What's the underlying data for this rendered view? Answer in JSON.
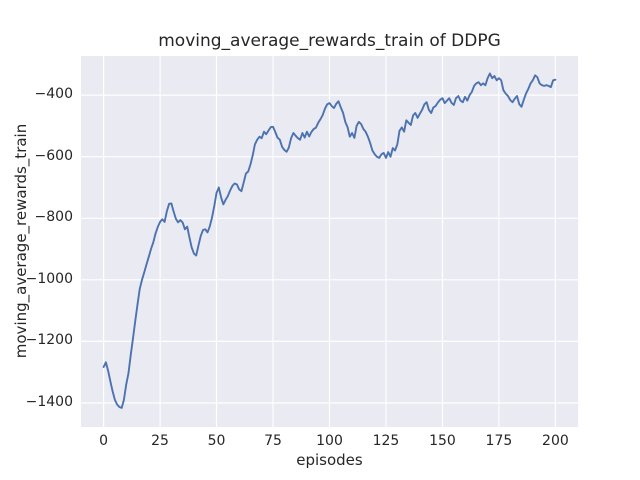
{
  "figure": {
    "background_color": "#ffffff",
    "text_color": "#262626"
  },
  "chart_data": {
    "type": "line",
    "title": "moving_average_rewards_train of DDPG",
    "xlabel": "episodes",
    "ylabel": "moving_average_rewards_train",
    "legend": false,
    "grid": true,
    "style": "seaborn-darkgrid",
    "plot_bg": "#eaeaf2",
    "grid_color": "#ffffff",
    "line_color": "#4c72b0",
    "xlim": [
      -10,
      210
    ],
    "ylim": [
      -1478,
      -273
    ],
    "x_ticks": [
      0,
      25,
      50,
      75,
      100,
      125,
      150,
      175,
      200
    ],
    "y_ticks": [
      -400,
      -600,
      -800,
      -1000,
      -1200,
      -1400
    ],
    "x": [
      0,
      1,
      2,
      3,
      4,
      5,
      6,
      7,
      8,
      9,
      10,
      11,
      12,
      13,
      14,
      15,
      16,
      17,
      18,
      19,
      20,
      21,
      22,
      23,
      24,
      25,
      26,
      27,
      28,
      29,
      30,
      31,
      32,
      33,
      34,
      35,
      36,
      37,
      38,
      39,
      40,
      41,
      42,
      43,
      44,
      45,
      46,
      47,
      48,
      49,
      50,
      51,
      52,
      53,
      54,
      55,
      56,
      57,
      58,
      59,
      60,
      61,
      62,
      63,
      64,
      65,
      66,
      67,
      68,
      69,
      70,
      71,
      72,
      73,
      74,
      75,
      76,
      77,
      78,
      79,
      80,
      81,
      82,
      83,
      84,
      85,
      86,
      87,
      88,
      89,
      90,
      91,
      92,
      93,
      94,
      95,
      96,
      97,
      98,
      99,
      100,
      101,
      102,
      103,
      104,
      105,
      106,
      107,
      108,
      109,
      110,
      111,
      112,
      113,
      114,
      115,
      116,
      117,
      118,
      119,
      120,
      121,
      122,
      123,
      124,
      125,
      126,
      127,
      128,
      129,
      130,
      131,
      132,
      133,
      134,
      135,
      136,
      137,
      138,
      139,
      140,
      141,
      142,
      143,
      144,
      145,
      146,
      147,
      148,
      149,
      150,
      151,
      152,
      153,
      154,
      155,
      156,
      157,
      158,
      159,
      160,
      161,
      162,
      163,
      164,
      165,
      166,
      167,
      168,
      169,
      170,
      171,
      172,
      173,
      174,
      175,
      176,
      177,
      178,
      179,
      180,
      181,
      182,
      183,
      184,
      185,
      186,
      187,
      188,
      189,
      190,
      191,
      192,
      193,
      194,
      195,
      196,
      197,
      198,
      199,
      200
    ],
    "y": [
      -1283,
      -1268,
      -1295,
      -1330,
      -1362,
      -1390,
      -1405,
      -1413,
      -1416,
      -1390,
      -1340,
      -1305,
      -1245,
      -1190,
      -1135,
      -1080,
      -1030,
      -1000,
      -975,
      -950,
      -925,
      -900,
      -878,
      -850,
      -828,
      -812,
      -803,
      -812,
      -778,
      -753,
      -752,
      -778,
      -802,
      -813,
      -806,
      -814,
      -836,
      -827,
      -862,
      -895,
      -915,
      -921,
      -888,
      -858,
      -838,
      -836,
      -846,
      -826,
      -798,
      -760,
      -718,
      -700,
      -732,
      -755,
      -740,
      -728,
      -710,
      -695,
      -687,
      -690,
      -706,
      -712,
      -684,
      -655,
      -648,
      -626,
      -596,
      -560,
      -545,
      -535,
      -540,
      -519,
      -527,
      -515,
      -504,
      -503,
      -520,
      -538,
      -545,
      -568,
      -578,
      -584,
      -571,
      -540,
      -523,
      -532,
      -540,
      -545,
      -523,
      -538,
      -519,
      -534,
      -520,
      -510,
      -506,
      -490,
      -478,
      -465,
      -444,
      -430,
      -426,
      -436,
      -442,
      -428,
      -420,
      -440,
      -458,
      -487,
      -505,
      -535,
      -523,
      -539,
      -500,
      -487,
      -494,
      -510,
      -519,
      -535,
      -556,
      -580,
      -592,
      -600,
      -604,
      -592,
      -588,
      -604,
      -585,
      -600,
      -572,
      -580,
      -560,
      -516,
      -505,
      -519,
      -482,
      -490,
      -497,
      -466,
      -458,
      -474,
      -460,
      -448,
      -430,
      -423,
      -448,
      -458,
      -440,
      -435,
      -424,
      -415,
      -410,
      -426,
      -418,
      -410,
      -425,
      -432,
      -410,
      -403,
      -418,
      -423,
      -406,
      -418,
      -400,
      -390,
      -370,
      -362,
      -358,
      -368,
      -362,
      -368,
      -345,
      -330,
      -345,
      -338,
      -352,
      -345,
      -352,
      -384,
      -395,
      -403,
      -416,
      -423,
      -412,
      -403,
      -430,
      -438,
      -415,
      -395,
      -380,
      -362,
      -352,
      -336,
      -342,
      -362,
      -368,
      -370,
      -368,
      -370,
      -374,
      -352,
      -350
    ]
  }
}
